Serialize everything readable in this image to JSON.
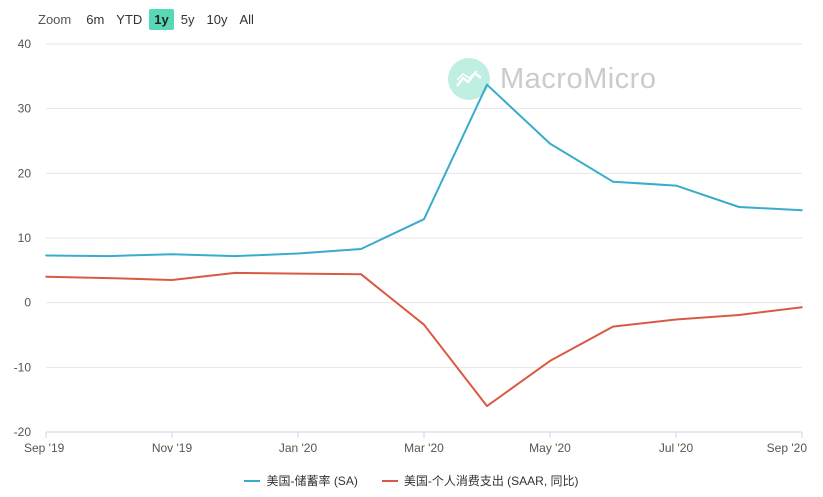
{
  "zoom": {
    "label": "Zoom",
    "buttons": [
      "6m",
      "YTD",
      "1y",
      "5y",
      "10y",
      "All"
    ],
    "active": "1y"
  },
  "watermark": {
    "text": "MacroMicro"
  },
  "colors": {
    "series1": "#3aaccb",
    "series2": "#d95a43",
    "zoom_active": "#57d9b7"
  },
  "chart_data": {
    "type": "line",
    "title": "",
    "ylabel": "",
    "ylim": [
      -20,
      40
    ],
    "yticks": [
      40,
      30,
      20,
      10,
      0,
      -10,
      -20
    ],
    "grid": true,
    "legend_position": "bottom",
    "x": [
      "2019-09",
      "2019-10",
      "2019-11",
      "2019-12",
      "2020-01",
      "2020-02",
      "2020-03",
      "2020-04",
      "2020-05",
      "2020-06",
      "2020-07",
      "2020-08",
      "2020-09"
    ],
    "xtick_labels": [
      {
        "x": "2019-09",
        "label": "Sep '19"
      },
      {
        "x": "2019-11",
        "label": "Nov '19"
      },
      {
        "x": "2020-01",
        "label": "Jan '20"
      },
      {
        "x": "2020-03",
        "label": "Mar '20"
      },
      {
        "x": "2020-05",
        "label": "May '20"
      },
      {
        "x": "2020-07",
        "label": "Jul '20"
      },
      {
        "x": "2020-09",
        "label": "Sep '20"
      }
    ],
    "series": [
      {
        "name": "美国-储蓄率 (SA)",
        "color": "#3aaccb",
        "values": [
          7.3,
          7.2,
          7.5,
          7.2,
          7.6,
          8.3,
          12.9,
          33.7,
          24.6,
          18.7,
          18.1,
          14.8,
          14.3
        ]
      },
      {
        "name": "美国-个人消费支出 (SAAR, 同比)",
        "color": "#d95a43",
        "values": [
          4.0,
          3.8,
          3.5,
          4.6,
          4.5,
          4.4,
          -3.4,
          -16.0,
          -9.0,
          -3.7,
          -2.6,
          -1.9,
          -0.7
        ]
      }
    ]
  }
}
